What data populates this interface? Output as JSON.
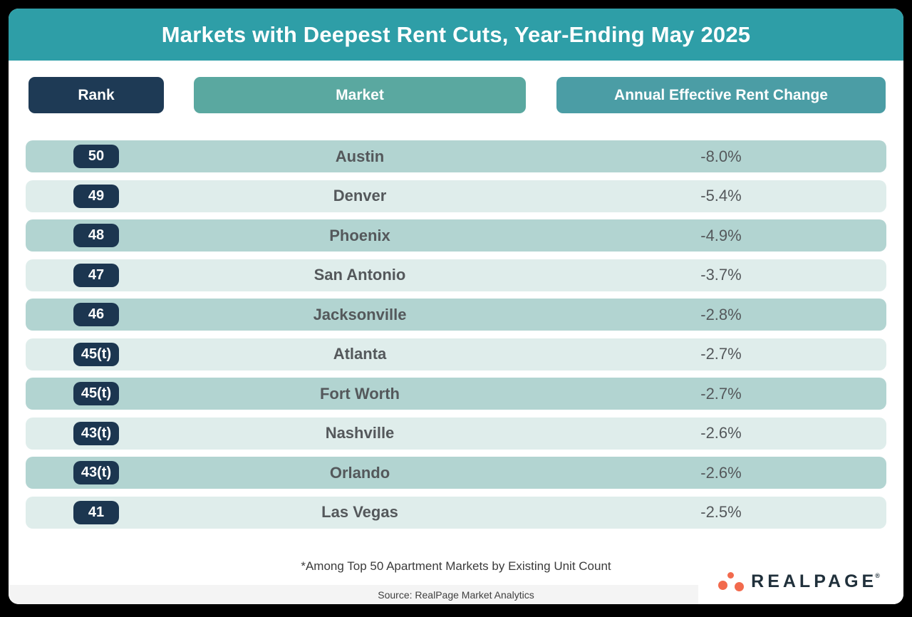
{
  "chart_data": {
    "type": "table",
    "title": "Markets with Deepest Rent Cuts, Year-Ending May 2025",
    "columns": [
      "Rank",
      "Market",
      "Annual Effective Rent Change"
    ],
    "rows": [
      [
        "50",
        "Austin",
        "-8.0%"
      ],
      [
        "49",
        "Denver",
        "-5.4%"
      ],
      [
        "48",
        "Phoenix",
        "-4.9%"
      ],
      [
        "47",
        "San Antonio",
        "-3.7%"
      ],
      [
        "46",
        "Jacksonville",
        "-2.8%"
      ],
      [
        "45(t)",
        "Atlanta",
        "-2.7%"
      ],
      [
        "45(t)",
        "Fort Worth",
        "-2.7%"
      ],
      [
        "43(t)",
        "Nashville",
        "-2.6%"
      ],
      [
        "43(t)",
        "Orlando",
        "-2.6%"
      ],
      [
        "41",
        "Las Vegas",
        "-2.5%"
      ]
    ],
    "footnote": "*Among Top 50 Apartment Markets by Existing Unit Count",
    "source": "Source: RealPage Market Analytics"
  },
  "logo": {
    "text": "REALPAGE",
    "mark": "®"
  },
  "colors": {
    "title_bar": "#2E9EA7",
    "rank_header": "#1E3A55",
    "market_header": "#5AA8A0",
    "change_header": "#4B9DA5",
    "row_dark": "#B2D4D1",
    "row_light": "#DFEDEB",
    "rank_badge": "#1C3650",
    "row_text": "#54585B",
    "logo_orange": "#F26A4D",
    "logo_text": "#20303B",
    "background": "#000000"
  }
}
